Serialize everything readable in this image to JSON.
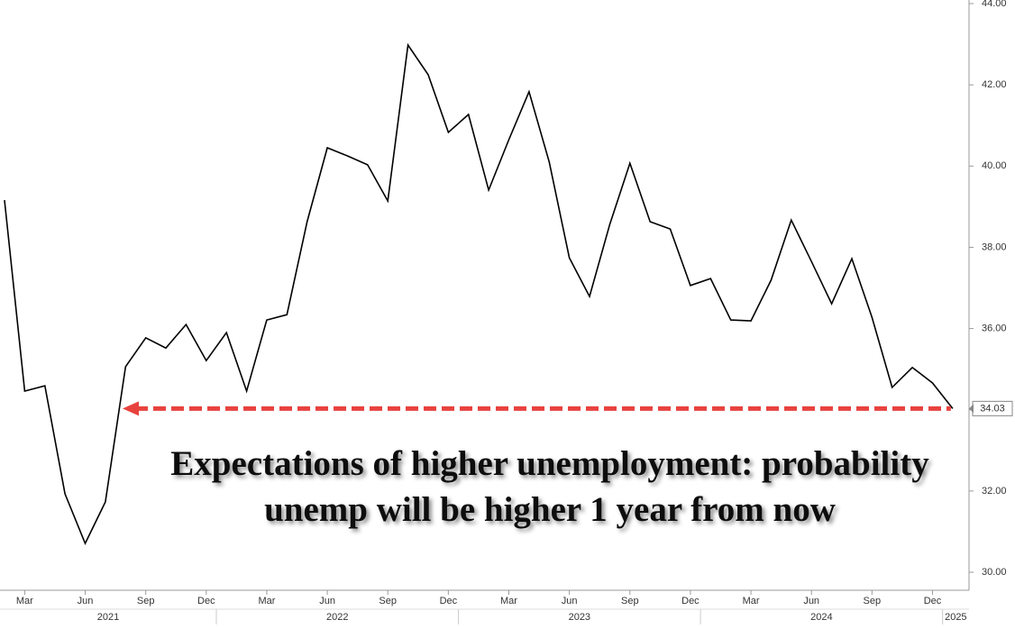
{
  "chart_data": {
    "type": "line",
    "annotation": [
      "Expectations of higher unemployment: probability",
      "unemp will be higher 1 year from now"
    ],
    "x": [
      "2021-02",
      "2021-03",
      "2021-04",
      "2021-05",
      "2021-06",
      "2021-07",
      "2021-08",
      "2021-09",
      "2021-10",
      "2021-11",
      "2021-12",
      "2022-01",
      "2022-02",
      "2022-03",
      "2022-04",
      "2022-05",
      "2022-06",
      "2022-07",
      "2022-08",
      "2022-09",
      "2022-10",
      "2022-11",
      "2022-12",
      "2023-01",
      "2023-02",
      "2023-03",
      "2023-04",
      "2023-05",
      "2023-06",
      "2023-07",
      "2023-08",
      "2023-09",
      "2023-10",
      "2023-11",
      "2023-12",
      "2024-01",
      "2024-02",
      "2024-03",
      "2024-04",
      "2024-05",
      "2024-06",
      "2024-07",
      "2024-08",
      "2024-09",
      "2024-10",
      "2024-11",
      "2024-12",
      "2025-01"
    ],
    "values": [
      39.16,
      34.46,
      34.59,
      31.93,
      30.71,
      31.73,
      35.06,
      35.77,
      35.52,
      36.1,
      35.21,
      35.9,
      34.46,
      36.21,
      36.34,
      38.63,
      40.45,
      40.25,
      40.03,
      39.14,
      42.98,
      42.25,
      40.83,
      41.27,
      39.41,
      40.65,
      41.83,
      40.1,
      37.74,
      36.79,
      38.56,
      40.07,
      38.63,
      38.45,
      37.06,
      37.23,
      36.21,
      36.19,
      37.19,
      38.67,
      37.65,
      36.61,
      37.72,
      36.28,
      34.55,
      35.04,
      34.66,
      34.03
    ],
    "color": "#000000",
    "reference_color": "#e8423f",
    "ylim": [
      30,
      44
    ],
    "yticks": [
      {
        "value": 30,
        "label": "30.00"
      },
      {
        "value": 32,
        "label": "32.00"
      },
      {
        "value": 34,
        "label": "34.00"
      },
      {
        "value": 36,
        "label": "36.00"
      },
      {
        "value": 38,
        "label": "38.00"
      },
      {
        "value": 40,
        "label": "40.00"
      },
      {
        "value": 42,
        "label": "42.00"
      },
      {
        "value": 44,
        "label": "44.00"
      }
    ],
    "xticks": [
      {
        "value": "2021-03",
        "label": "Mar"
      },
      {
        "value": "2021-06",
        "label": "Jun"
      },
      {
        "value": "2021-09",
        "label": "Sep"
      },
      {
        "value": "2021-12",
        "label": "Dec"
      },
      {
        "value": "2022-03",
        "label": "Mar"
      },
      {
        "value": "2022-06",
        "label": "Jun"
      },
      {
        "value": "2022-09",
        "label": "Sep"
      },
      {
        "value": "2022-12",
        "label": "Dec"
      },
      {
        "value": "2023-03",
        "label": "Mar"
      },
      {
        "value": "2023-06",
        "label": "Jun"
      },
      {
        "value": "2023-09",
        "label": "Sep"
      },
      {
        "value": "2023-12",
        "label": "Dec"
      },
      {
        "value": "2024-03",
        "label": "Mar"
      },
      {
        "value": "2024-06",
        "label": "Jun"
      },
      {
        "value": "2024-09",
        "label": "Sep"
      },
      {
        "value": "2024-12",
        "label": "Dec"
      }
    ],
    "year_ticks": [
      {
        "value": "2021-01",
        "label": "2021"
      },
      {
        "value": "2022-01",
        "label": "2022"
      },
      {
        "value": "2023-01",
        "label": "2023"
      },
      {
        "value": "2024-01",
        "label": "2024"
      },
      {
        "value": "2025-01",
        "label": "2025"
      }
    ]
  }
}
